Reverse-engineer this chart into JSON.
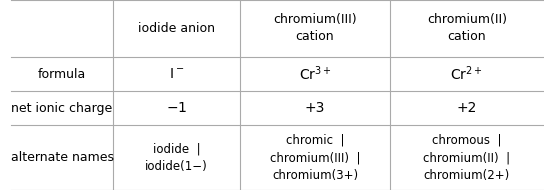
{
  "col_headers": [
    "iodide anion",
    "chromium(III)\ncation",
    "chromium(II)\ncation"
  ],
  "row_headers": [
    "formula",
    "net ionic charge",
    "alternate names"
  ],
  "bg_color": "#ffffff",
  "grid_color": "#aaaaaa",
  "text_color": "#000000",
  "font_size": 9
}
